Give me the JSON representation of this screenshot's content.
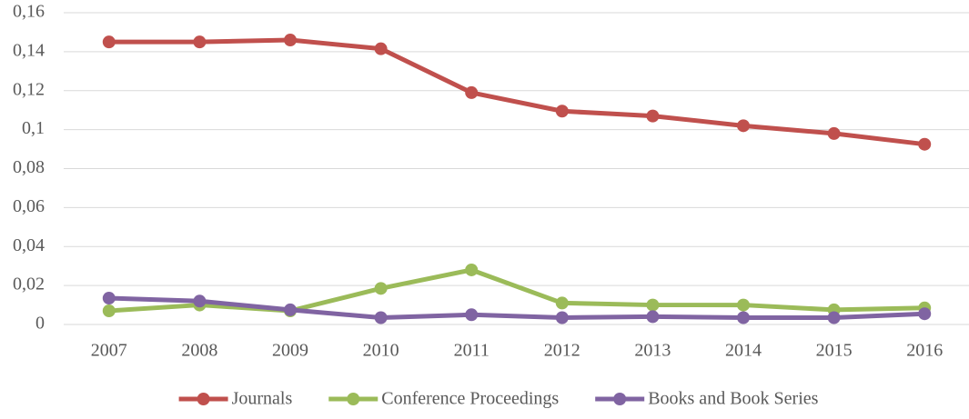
{
  "chart_data": {
    "type": "line",
    "categories": [
      "2007",
      "2008",
      "2009",
      "2010",
      "2011",
      "2012",
      "2013",
      "2014",
      "2015",
      "2016"
    ],
    "series": [
      {
        "name": "Journals",
        "color": "#c0504d",
        "values": [
          0.145,
          0.145,
          0.146,
          0.1415,
          0.119,
          0.1095,
          0.107,
          0.102,
          0.098,
          0.0925
        ]
      },
      {
        "name": "Conference Proceedings",
        "color": "#9bbb59",
        "values": [
          0.007,
          0.01,
          0.007,
          0.0185,
          0.028,
          0.011,
          0.01,
          0.01,
          0.0075,
          0.0085
        ]
      },
      {
        "name": "Books and Book Series",
        "color": "#8064a2",
        "values": [
          0.0135,
          0.012,
          0.0075,
          0.0035,
          0.005,
          0.0035,
          0.004,
          0.0035,
          0.0035,
          0.0055
        ]
      }
    ],
    "ylim": [
      0,
      0.16
    ],
    "yticks": [
      0,
      {
        "value": 0.02,
        "label": "0,02"
      },
      {
        "value": 0.04,
        "label": "0,04"
      },
      {
        "value": 0.06,
        "label": "0,06"
      },
      {
        "value": 0.08,
        "label": "0,08"
      },
      {
        "value": 0.1,
        "label": "0,1"
      },
      {
        "value": 0.12,
        "label": "0,12"
      },
      {
        "value": 0.14,
        "label": "0,14"
      },
      {
        "value": 0.16,
        "label": "0,16"
      }
    ],
    "grid": true,
    "legend": "bottom"
  }
}
